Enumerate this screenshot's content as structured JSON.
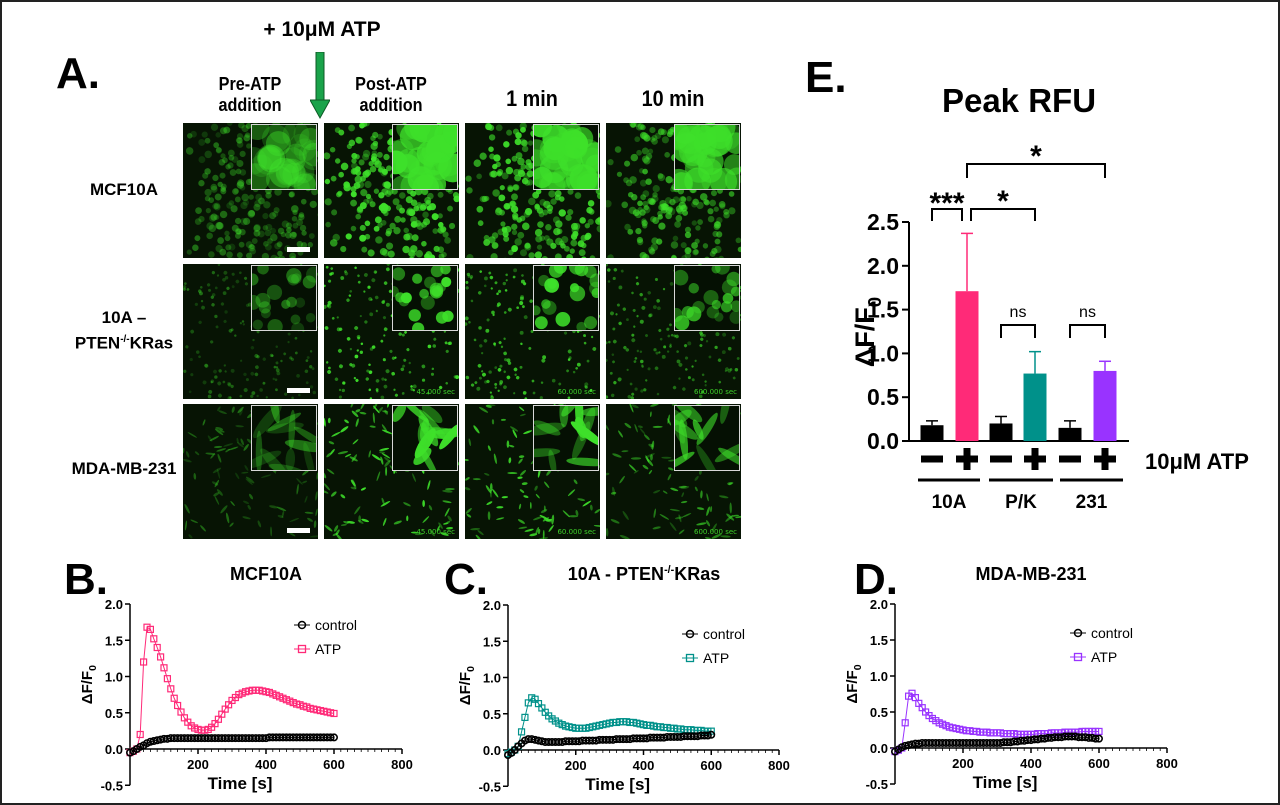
{
  "colors": {
    "atp_10A": "#ff2a78",
    "atp_pk": "#00918a",
    "atp_231": "#9933ff",
    "control": "#000000",
    "arrow": "#1aa34a",
    "micro_green": "#3ee02a"
  },
  "panel_a": {
    "label": "A.",
    "treatment": "+ 10μM ATP",
    "arrow_icon": "down-arrow-icon",
    "columns": [
      {
        "line1": "Pre-ATP",
        "line2": "addition"
      },
      {
        "line1": "Post-ATP",
        "line2": "addition"
      },
      {
        "line1": "1 min",
        "line2": ""
      },
      {
        "line1": "10 min",
        "line2": ""
      }
    ],
    "rows": [
      {
        "line1": "MCF10A",
        "base": "",
        "sup": "",
        "suffix": ""
      },
      {
        "line1": "10A –",
        "base": "PTEN",
        "sup": "-/-",
        "suffix": "KRas"
      },
      {
        "line1": "MDA-MB-231",
        "base": "",
        "sup": "",
        "suffix": ""
      }
    ],
    "timestamps": [
      "45.000 sec",
      "60.000 sec",
      "600.000 sec"
    ]
  },
  "chart_data": [
    {
      "panel": "B.",
      "type": "line",
      "title": "MCF10A",
      "title_sup": "",
      "title_suffix": "",
      "xlabel": "Time [s]",
      "ylabel": "ΔF/F",
      "ylabel_sub": "0",
      "xlim": [
        0,
        800
      ],
      "ylim": [
        -0.5,
        2.0
      ],
      "xticks": [
        200,
        400,
        600,
        800
      ],
      "yticks": [
        -0.5,
        0.0,
        0.5,
        1.0,
        1.5,
        2.0
      ],
      "legend": "top-right",
      "grid": false,
      "x": [
        0,
        10,
        20,
        30,
        40,
        50,
        60,
        70,
        80,
        90,
        100,
        110,
        120,
        130,
        140,
        150,
        160,
        170,
        180,
        190,
        200,
        210,
        220,
        230,
        240,
        250,
        260,
        270,
        280,
        290,
        300,
        310,
        320,
        330,
        340,
        350,
        360,
        370,
        380,
        390,
        400,
        410,
        420,
        430,
        440,
        450,
        460,
        470,
        480,
        490,
        500,
        510,
        520,
        530,
        540,
        550,
        560,
        570,
        580,
        590,
        600
      ],
      "series": [
        {
          "name": "control",
          "marker": "circle",
          "color": "#000000",
          "values": [
            -0.05,
            -0.03,
            0.0,
            0.03,
            0.05,
            0.08,
            0.1,
            0.11,
            0.12,
            0.13,
            0.14,
            0.14,
            0.15,
            0.15,
            0.15,
            0.15,
            0.15,
            0.15,
            0.15,
            0.15,
            0.15,
            0.15,
            0.15,
            0.15,
            0.15,
            0.15,
            0.15,
            0.15,
            0.15,
            0.15,
            0.15,
            0.15,
            0.15,
            0.15,
            0.15,
            0.15,
            0.15,
            0.15,
            0.15,
            0.15,
            0.15,
            0.16,
            0.16,
            0.16,
            0.16,
            0.16,
            0.16,
            0.16,
            0.16,
            0.16,
            0.16,
            0.16,
            0.16,
            0.16,
            0.16,
            0.16,
            0.16,
            0.16,
            0.16,
            0.16,
            0.16
          ]
        },
        {
          "name": "ATP",
          "marker": "square",
          "color": "#ff2a78",
          "values": [
            -0.05,
            -0.03,
            0.0,
            0.2,
            1.2,
            1.68,
            1.65,
            1.52,
            1.4,
            1.27,
            1.12,
            0.97,
            0.83,
            0.7,
            0.6,
            0.51,
            0.43,
            0.37,
            0.32,
            0.29,
            0.27,
            0.26,
            0.26,
            0.27,
            0.3,
            0.35,
            0.41,
            0.48,
            0.55,
            0.61,
            0.67,
            0.71,
            0.75,
            0.77,
            0.79,
            0.8,
            0.81,
            0.81,
            0.81,
            0.8,
            0.79,
            0.78,
            0.76,
            0.74,
            0.72,
            0.7,
            0.68,
            0.66,
            0.64,
            0.62,
            0.61,
            0.59,
            0.58,
            0.56,
            0.55,
            0.54,
            0.53,
            0.52,
            0.51,
            0.5,
            0.49
          ]
        }
      ]
    },
    {
      "panel": "C.",
      "type": "line",
      "title": "10A - PTEN",
      "title_sup": "-/-",
      "title_suffix": "KRas",
      "xlabel": "Time [s]",
      "ylabel": "ΔF/F",
      "ylabel_sub": "0",
      "xlim": [
        0,
        800
      ],
      "ylim": [
        -0.5,
        2.0
      ],
      "xticks": [
        200,
        400,
        600,
        800
      ],
      "yticks": [
        -0.5,
        0.0,
        0.5,
        1.0,
        1.5,
        2.0
      ],
      "legend": "top-right",
      "grid": false,
      "x": [
        0,
        10,
        20,
        30,
        40,
        50,
        60,
        70,
        80,
        90,
        100,
        110,
        120,
        130,
        140,
        150,
        160,
        170,
        180,
        190,
        200,
        210,
        220,
        230,
        240,
        250,
        260,
        270,
        280,
        290,
        300,
        310,
        320,
        330,
        340,
        350,
        360,
        370,
        380,
        390,
        400,
        410,
        420,
        430,
        440,
        450,
        460,
        470,
        480,
        490,
        500,
        510,
        520,
        530,
        540,
        550,
        560,
        570,
        580,
        590,
        600
      ],
      "series": [
        {
          "name": "control",
          "marker": "circle",
          "color": "#000000",
          "values": [
            -0.07,
            -0.04,
            0.0,
            0.05,
            0.09,
            0.13,
            0.15,
            0.15,
            0.14,
            0.13,
            0.12,
            0.11,
            0.11,
            0.11,
            0.11,
            0.11,
            0.11,
            0.12,
            0.12,
            0.12,
            0.12,
            0.12,
            0.13,
            0.13,
            0.13,
            0.13,
            0.13,
            0.14,
            0.14,
            0.14,
            0.14,
            0.14,
            0.15,
            0.15,
            0.15,
            0.15,
            0.15,
            0.16,
            0.16,
            0.16,
            0.16,
            0.16,
            0.17,
            0.17,
            0.17,
            0.17,
            0.17,
            0.18,
            0.18,
            0.18,
            0.18,
            0.18,
            0.19,
            0.19,
            0.19,
            0.19,
            0.19,
            0.2,
            0.2,
            0.2,
            0.21
          ]
        },
        {
          "name": "ATP",
          "marker": "square",
          "color": "#00918a",
          "values": [
            -0.05,
            -0.03,
            0.0,
            0.05,
            0.25,
            0.45,
            0.65,
            0.72,
            0.7,
            0.64,
            0.58,
            0.52,
            0.47,
            0.43,
            0.4,
            0.37,
            0.35,
            0.33,
            0.32,
            0.31,
            0.3,
            0.3,
            0.3,
            0.3,
            0.31,
            0.32,
            0.33,
            0.34,
            0.35,
            0.36,
            0.37,
            0.38,
            0.38,
            0.39,
            0.39,
            0.39,
            0.38,
            0.38,
            0.37,
            0.36,
            0.35,
            0.34,
            0.34,
            0.33,
            0.32,
            0.32,
            0.31,
            0.31,
            0.3,
            0.3,
            0.29,
            0.29,
            0.28,
            0.28,
            0.28,
            0.27,
            0.27,
            0.27,
            0.26,
            0.26,
            0.26
          ]
        }
      ]
    },
    {
      "panel": "D.",
      "type": "line",
      "title": "MDA-MB-231",
      "title_sup": "",
      "title_suffix": "",
      "xlabel": "Time [s]",
      "ylabel": "ΔF/F",
      "ylabel_sub": "0",
      "xlim": [
        0,
        800
      ],
      "ylim": [
        -0.5,
        2.0
      ],
      "xticks": [
        200,
        400,
        600,
        800
      ],
      "yticks": [
        -0.5,
        0.0,
        0.5,
        1.0,
        1.5,
        2.0
      ],
      "legend": "top-right",
      "grid": false,
      "x": [
        0,
        10,
        20,
        30,
        40,
        50,
        60,
        70,
        80,
        90,
        100,
        110,
        120,
        130,
        140,
        150,
        160,
        170,
        180,
        190,
        200,
        210,
        220,
        230,
        240,
        250,
        260,
        270,
        280,
        290,
        300,
        310,
        320,
        330,
        340,
        350,
        360,
        370,
        380,
        390,
        400,
        410,
        420,
        430,
        440,
        450,
        460,
        470,
        480,
        490,
        500,
        510,
        520,
        530,
        540,
        550,
        560,
        570,
        580,
        590,
        600
      ],
      "series": [
        {
          "name": "control",
          "marker": "circle",
          "color": "#000000",
          "values": [
            -0.05,
            -0.02,
            0.01,
            0.03,
            0.04,
            0.05,
            0.06,
            0.06,
            0.07,
            0.07,
            0.07,
            0.07,
            0.07,
            0.07,
            0.07,
            0.07,
            0.07,
            0.07,
            0.07,
            0.07,
            0.07,
            0.07,
            0.07,
            0.07,
            0.07,
            0.07,
            0.07,
            0.07,
            0.07,
            0.07,
            0.07,
            0.07,
            0.08,
            0.08,
            0.08,
            0.09,
            0.09,
            0.1,
            0.1,
            0.11,
            0.11,
            0.12,
            0.12,
            0.13,
            0.13,
            0.14,
            0.14,
            0.15,
            0.15,
            0.15,
            0.16,
            0.16,
            0.16,
            0.16,
            0.15,
            0.15,
            0.15,
            0.14,
            0.14,
            0.13,
            0.13
          ]
        },
        {
          "name": "ATP",
          "marker": "square",
          "color": "#9933ff",
          "values": [
            -0.05,
            -0.03,
            0.0,
            0.35,
            0.72,
            0.76,
            0.7,
            0.62,
            0.56,
            0.5,
            0.45,
            0.41,
            0.38,
            0.35,
            0.33,
            0.31,
            0.29,
            0.28,
            0.27,
            0.26,
            0.25,
            0.24,
            0.24,
            0.23,
            0.23,
            0.22,
            0.22,
            0.22,
            0.21,
            0.21,
            0.21,
            0.21,
            0.2,
            0.2,
            0.2,
            0.2,
            0.19,
            0.19,
            0.19,
            0.19,
            0.19,
            0.19,
            0.2,
            0.2,
            0.2,
            0.2,
            0.21,
            0.21,
            0.21,
            0.21,
            0.22,
            0.22,
            0.22,
            0.22,
            0.22,
            0.23,
            0.23,
            0.23,
            0.23,
            0.23,
            0.23
          ]
        }
      ]
    },
    {
      "panel": "E.",
      "type": "bar",
      "title": "Peak RFU",
      "ylabel": "ΔF/F",
      "ylabel_sub": "0",
      "ylim": [
        0,
        2.5
      ],
      "yticks": [
        0.0,
        0.5,
        1.0,
        1.5,
        2.0,
        2.5
      ],
      "grid": false,
      "treatment_label": "10μM ATP",
      "groups": [
        "10A",
        "P/K",
        "231"
      ],
      "bars": [
        {
          "group": "10A",
          "atp": "−",
          "value": 0.18,
          "error_upper": 0.23,
          "color": "#000000"
        },
        {
          "group": "10A",
          "atp": "+",
          "value": 1.71,
          "error_upper": 2.37,
          "color": "#ff2a78"
        },
        {
          "group": "P/K",
          "atp": "−",
          "value": 0.2,
          "error_upper": 0.28,
          "color": "#000000"
        },
        {
          "group": "P/K",
          "atp": "+",
          "value": 0.77,
          "error_upper": 1.02,
          "color": "#00918a"
        },
        {
          "group": "231",
          "atp": "−",
          "value": 0.15,
          "error_upper": 0.23,
          "color": "#000000"
        },
        {
          "group": "231",
          "atp": "+",
          "value": 0.8,
          "error_upper": 0.91,
          "color": "#9933ff"
        }
      ],
      "significance": [
        {
          "from": 0,
          "to": 1,
          "label": "***"
        },
        {
          "from": 1,
          "to": 3,
          "label": "*"
        },
        {
          "from": 1,
          "to": 5,
          "label": "*"
        },
        {
          "from": 2,
          "to": 3,
          "label": "ns"
        },
        {
          "from": 4,
          "to": 5,
          "label": "ns"
        }
      ]
    }
  ]
}
